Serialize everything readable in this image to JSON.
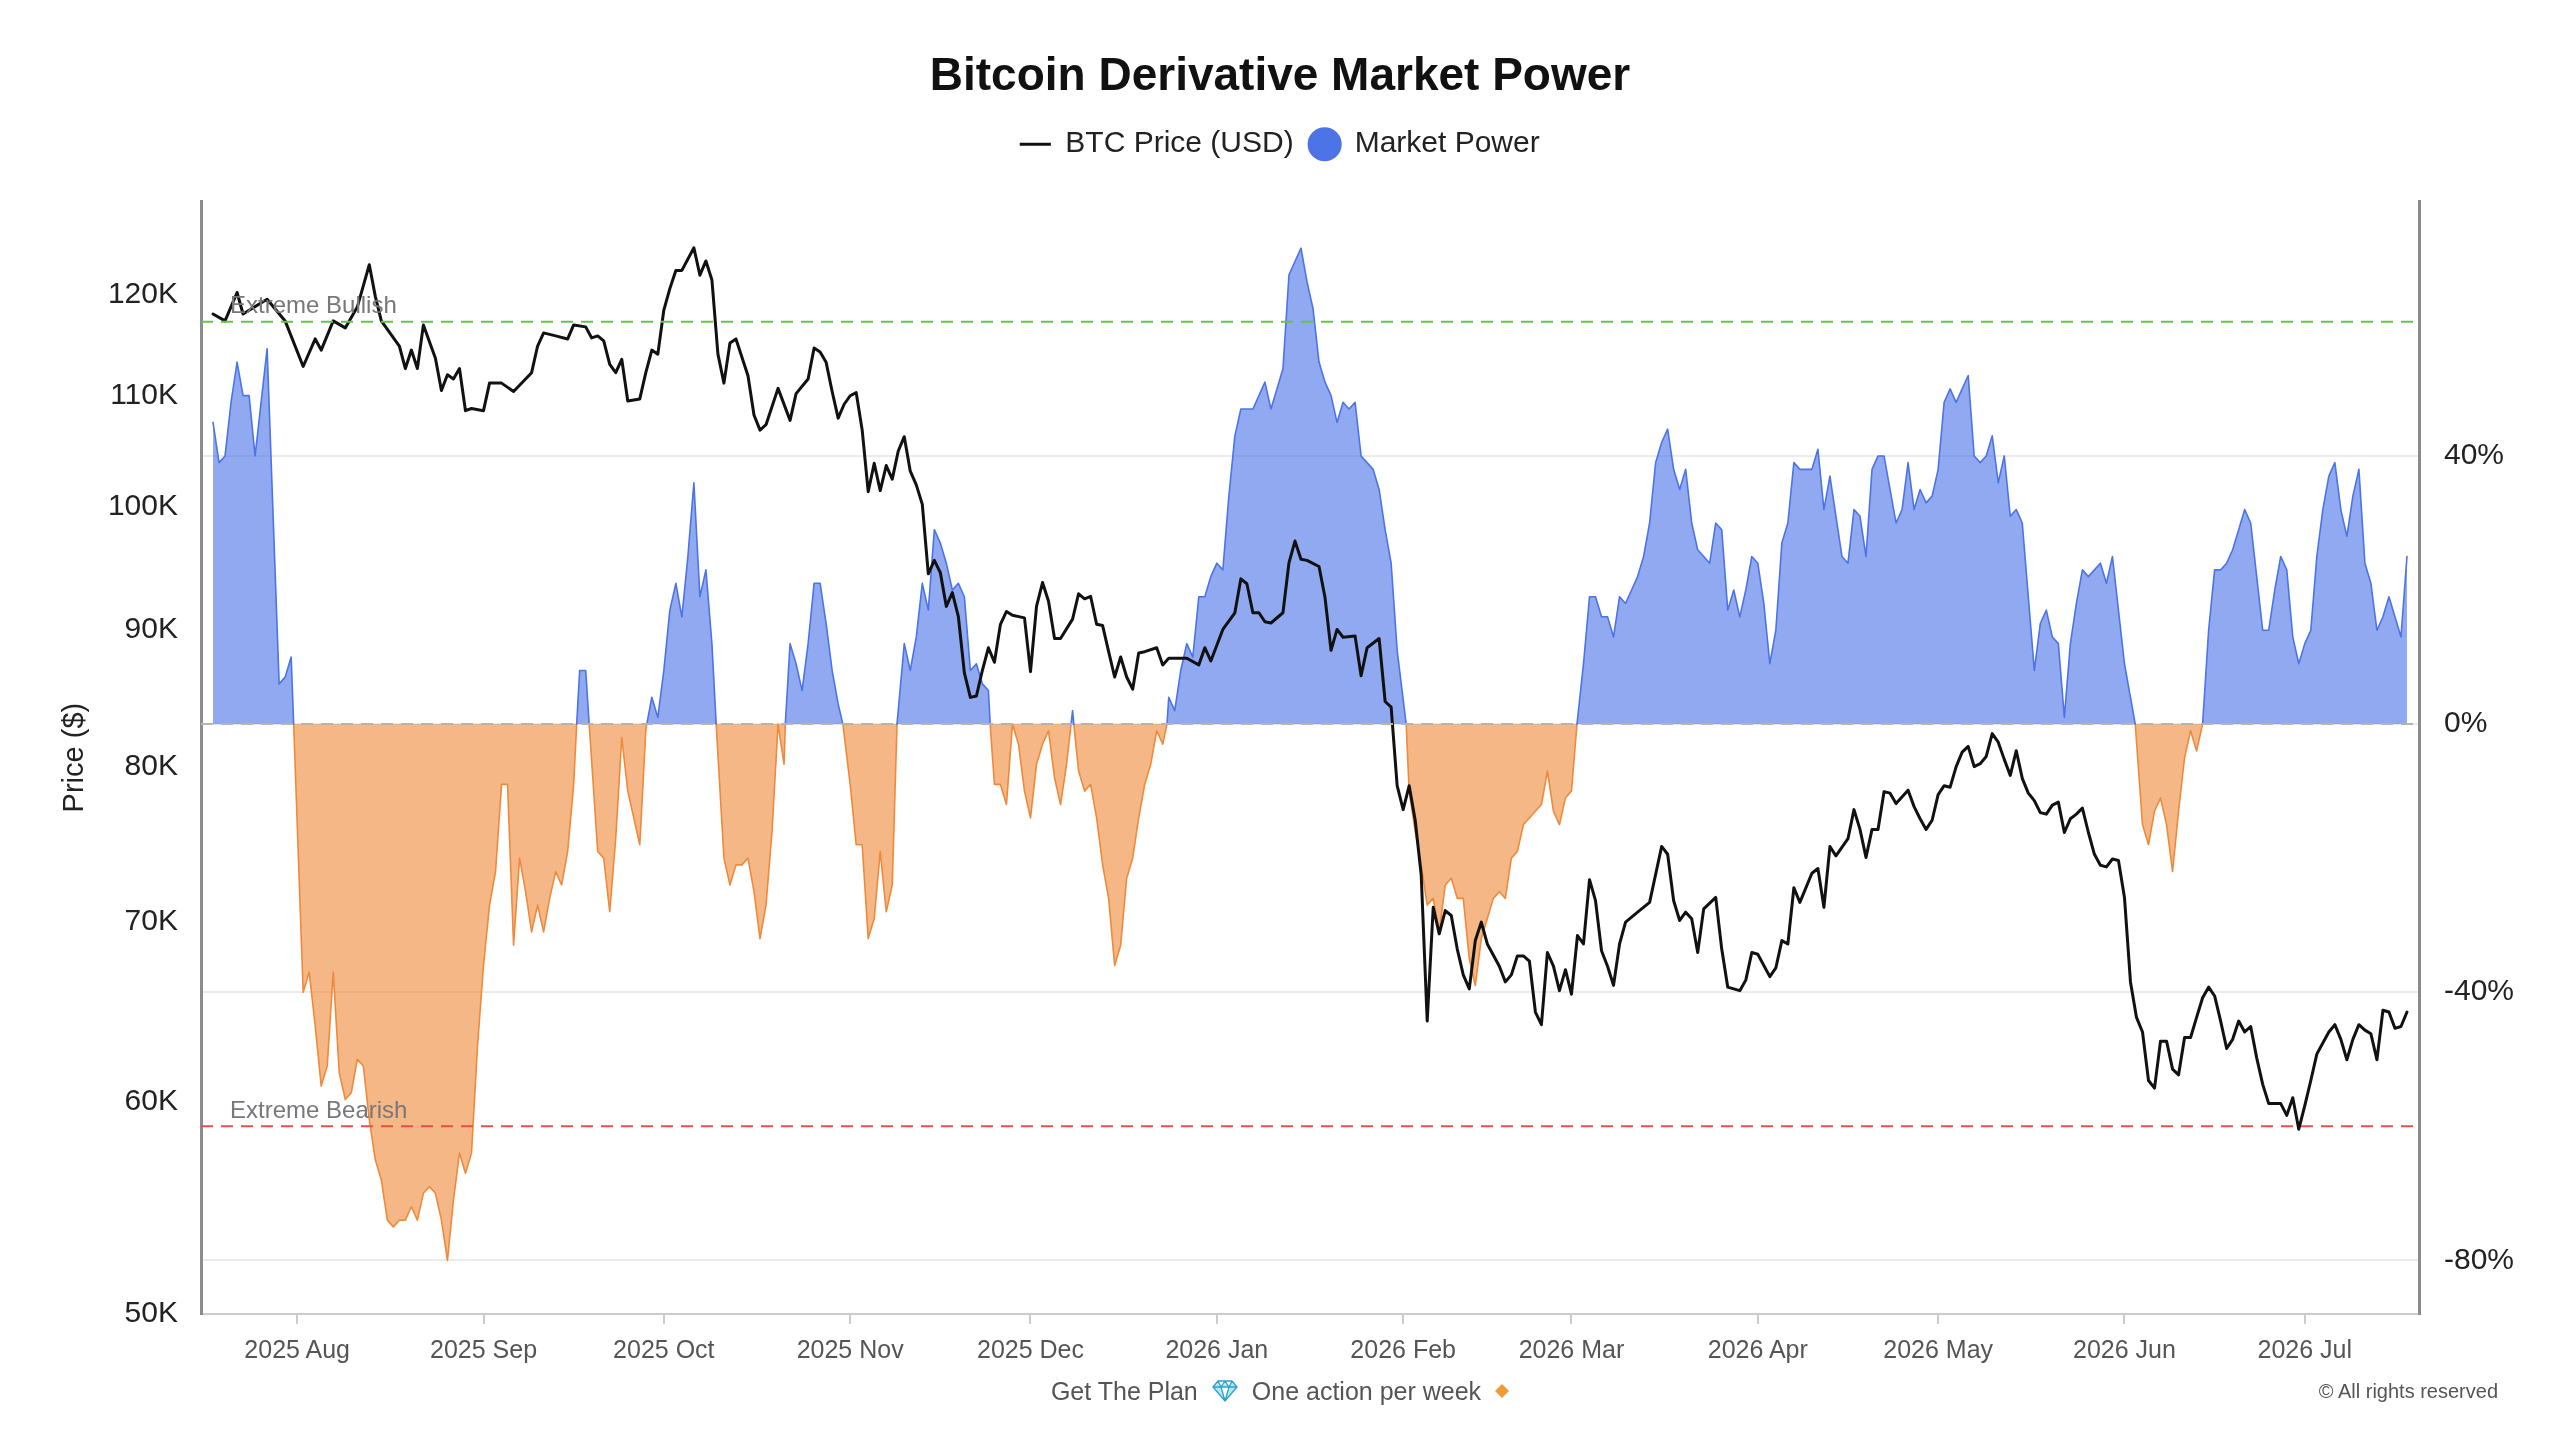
{
  "chart_data": {
    "type": "line",
    "title": "Bitcoin Derivative Market Power",
    "ylabel": "Price ($)",
    "legend": "top",
    "log": "y",
    "grid": "y2",
    "xlim": [
      "2025-07-16",
      "2026-07-20"
    ],
    "xticks": [
      {
        "value": "2025-08",
        "label": "2025 Aug"
      },
      {
        "value": "2025-09",
        "label": "2025 Sep"
      },
      {
        "value": "2025-10",
        "label": "2025 Oct"
      },
      {
        "value": "2025-11",
        "label": "2025 Nov"
      },
      {
        "value": "2025-12",
        "label": "2025 Dec"
      },
      {
        "value": "2026-01",
        "label": "2026 Jan"
      },
      {
        "value": "2026-02",
        "label": "2026 Feb"
      },
      {
        "value": "2026-03",
        "label": "2026 Mar"
      },
      {
        "value": "2026-04",
        "label": "2026 Apr"
      },
      {
        "value": "2026-05",
        "label": "2026 May"
      },
      {
        "value": "2026-06",
        "label": "2026 Jun"
      },
      {
        "value": "2026-07",
        "label": "2026 Jul"
      }
    ],
    "ylim": [
      50000,
      130000
    ],
    "yticks": [
      {
        "value": 50000,
        "label": "50K"
      },
      {
        "value": 60000,
        "label": "60K"
      },
      {
        "value": 70000,
        "label": "70K"
      },
      {
        "value": 80000,
        "label": "80K"
      },
      {
        "value": 90000,
        "label": "90K"
      },
      {
        "value": 100000,
        "label": "100K"
      },
      {
        "value": 110000,
        "label": "110K"
      },
      {
        "value": 120000,
        "label": "120K"
      }
    ],
    "y2lim": [
      -88,
      78
    ],
    "y2ticks": [
      {
        "value": -80,
        "label": "-80%"
      },
      {
        "value": -40,
        "label": "-40%"
      },
      {
        "value": 0,
        "label": "0%"
      },
      {
        "value": 40,
        "label": "40%"
      }
    ],
    "ref_lines": [
      {
        "axis": "y2",
        "value": 60,
        "label": "Extreme Bullish",
        "color": "#6cbf4f",
        "line_style": "dashed"
      },
      {
        "axis": "y2",
        "value": -60,
        "label": "Extreme Bearish",
        "color": "#e0524f",
        "line_style": "dashed"
      },
      {
        "axis": "y2",
        "value": 0,
        "color": "#b4b4b4",
        "line_style": "dashed"
      }
    ],
    "annotations": [
      "Get The Plan",
      "One action per week",
      "© All rights reserved"
    ],
    "series": [
      {
        "name": "BTC Price (USD)",
        "color": "#111111",
        "x": [
          "2025-07-18",
          "2025-07-20",
          "2025-07-22",
          "2025-07-23",
          "2025-07-27",
          "2025-07-30",
          "2025-08-02",
          "2025-08-04",
          "2025-08-05",
          "2025-08-07",
          "2025-08-09",
          "2025-08-11",
          "2025-08-13",
          "2025-08-14",
          "2025-08-15",
          "2025-08-18",
          "2025-08-19",
          "2025-08-20",
          "2025-08-21",
          "2025-08-22",
          "2025-08-24",
          "2025-08-25",
          "2025-08-26",
          "2025-08-27",
          "2025-08-28",
          "2025-08-29",
          "2025-08-30",
          "2025-09-01",
          "2025-09-02",
          "2025-09-04",
          "2025-09-06",
          "2025-09-09",
          "2025-09-10",
          "2025-09-11",
          "2025-09-13",
          "2025-09-15",
          "2025-09-16",
          "2025-09-18",
          "2025-09-19",
          "2025-09-20",
          "2025-09-21",
          "2025-09-22",
          "2025-09-23",
          "2025-09-24",
          "2025-09-25",
          "2025-09-27",
          "2025-09-28",
          "2025-09-29",
          "2025-09-30",
          "2025-10-01",
          "2025-10-02",
          "2025-10-03",
          "2025-10-04",
          "2025-10-06",
          "2025-10-07",
          "2025-10-08",
          "2025-10-09",
          "2025-10-10",
          "2025-10-11",
          "2025-10-12",
          "2025-10-13",
          "2025-10-15",
          "2025-10-16",
          "2025-10-17",
          "2025-10-18",
          "2025-10-20",
          "2025-10-22",
          "2025-10-23",
          "2025-10-25",
          "2025-10-26",
          "2025-10-27",
          "2025-10-28",
          "2025-10-29",
          "2025-10-30",
          "2025-10-31",
          "2025-11-01",
          "2025-11-02",
          "2025-11-03",
          "2025-11-04",
          "2025-11-05",
          "2025-11-06",
          "2025-11-07",
          "2025-11-08",
          "2025-11-09",
          "2025-11-10",
          "2025-11-11",
          "2025-11-12",
          "2025-11-13",
          "2025-11-14",
          "2025-11-15",
          "2025-11-16",
          "2025-11-17",
          "2025-11-18",
          "2025-11-19",
          "2025-11-20",
          "2025-11-21",
          "2025-11-22",
          "2025-11-23",
          "2025-11-24",
          "2025-11-25",
          "2025-11-26",
          "2025-11-27",
          "2025-11-28",
          "2025-11-30",
          "2025-12-01",
          "2025-12-02",
          "2025-12-03",
          "2025-12-04",
          "2025-12-05",
          "2025-12-06",
          "2025-12-08",
          "2025-12-09",
          "2025-12-10",
          "2025-12-11",
          "2025-12-12",
          "2025-12-13",
          "2025-12-14",
          "2025-12-15",
          "2025-12-16",
          "2025-12-17",
          "2025-12-18",
          "2025-12-19",
          "2025-12-20",
          "2025-12-22",
          "2025-12-23",
          "2025-12-24",
          "2025-12-27",
          "2025-12-29",
          "2025-12-30",
          "2025-12-31",
          "2026-01-02",
          "2026-01-04",
          "2026-01-05",
          "2026-01-06",
          "2026-01-07",
          "2026-01-08",
          "2026-01-09",
          "2026-01-10",
          "2026-01-12",
          "2026-01-13",
          "2026-01-14",
          "2026-01-15",
          "2026-01-16",
          "2026-01-18",
          "2026-01-19",
          "2026-01-20",
          "2026-01-21",
          "2026-01-22",
          "2026-01-24",
          "2026-01-25",
          "2026-01-26",
          "2026-01-28",
          "2026-01-29",
          "2026-01-30",
          "2026-01-31",
          "2026-02-01",
          "2026-02-02",
          "2026-02-03",
          "2026-02-04",
          "2026-02-05",
          "2026-02-06",
          "2026-02-07",
          "2026-02-08",
          "2026-02-09",
          "2026-02-10",
          "2026-02-11",
          "2026-02-12",
          "2026-02-13",
          "2026-02-14",
          "2026-02-15",
          "2026-02-17",
          "2026-02-18",
          "2026-02-19",
          "2026-02-20",
          "2026-02-21",
          "2026-02-22",
          "2026-02-23",
          "2026-02-24",
          "2026-02-25",
          "2026-02-26",
          "2026-02-27",
          "2026-02-28",
          "2026-03-01",
          "2026-03-02",
          "2026-03-03",
          "2026-03-04",
          "2026-03-05",
          "2026-03-06",
          "2026-03-07",
          "2026-03-08",
          "2026-03-09",
          "2026-03-10",
          "2026-03-12",
          "2026-03-14",
          "2026-03-16",
          "2026-03-17",
          "2026-03-18",
          "2026-03-19",
          "2026-03-20",
          "2026-03-21",
          "2026-03-22",
          "2026-03-23",
          "2026-03-25",
          "2026-03-26",
          "2026-03-27",
          "2026-03-29",
          "2026-03-30",
          "2026-03-31",
          "2026-04-01",
          "2026-04-03",
          "2026-04-04",
          "2026-04-05",
          "2026-04-06",
          "2026-04-07",
          "2026-04-08",
          "2026-04-10",
          "2026-04-11",
          "2026-04-12",
          "2026-04-13",
          "2026-04-14",
          "2026-04-16",
          "2026-04-17",
          "2026-04-18",
          "2026-04-19",
          "2026-04-20",
          "2026-04-21",
          "2026-04-22",
          "2026-04-23",
          "2026-04-24",
          "2026-04-26",
          "2026-04-27",
          "2026-04-28",
          "2026-04-29",
          "2026-04-30",
          "2026-05-01",
          "2026-05-02",
          "2026-05-03",
          "2026-05-04",
          "2026-05-05",
          "2026-05-06",
          "2026-05-07",
          "2026-05-08",
          "2026-05-09",
          "2026-05-10",
          "2026-05-11",
          "2026-05-12",
          "2026-05-13",
          "2026-05-14",
          "2026-05-15",
          "2026-05-16",
          "2026-05-17",
          "2026-05-18",
          "2026-05-19",
          "2026-05-20",
          "2026-05-21",
          "2026-05-22",
          "2026-05-23",
          "2026-05-24",
          "2026-05-25",
          "2026-05-26",
          "2026-05-27",
          "2026-05-28",
          "2026-05-29",
          "2026-05-30",
          "2026-05-31",
          "2026-06-01",
          "2026-06-02",
          "2026-06-03",
          "2026-06-04",
          "2026-06-05",
          "2026-06-06",
          "2026-06-07",
          "2026-06-08",
          "2026-06-09",
          "2026-06-10",
          "2026-06-11",
          "2026-06-12",
          "2026-06-13",
          "2026-06-14",
          "2026-06-15",
          "2026-06-16",
          "2026-06-17",
          "2026-06-18",
          "2026-06-19",
          "2026-06-20",
          "2026-06-21",
          "2026-06-22",
          "2026-06-23",
          "2026-06-24",
          "2026-06-25",
          "2026-06-27",
          "2026-06-28",
          "2026-06-29",
          "2026-06-30",
          "2026-07-01",
          "2026-07-02",
          "2026-07-03",
          "2026-07-04",
          "2026-07-05",
          "2026-07-06",
          "2026-07-07",
          "2026-07-08",
          "2026-07-09",
          "2026-07-10",
          "2026-07-11",
          "2026-07-12",
          "2026-07-13",
          "2026-07-14",
          "2026-07-15",
          "2026-07-16",
          "2026-07-17",
          "2026-07-18"
        ],
        "values": [
          118000,
          117300,
          120200,
          118000,
          119500,
          117300,
          112800,
          115500,
          114400,
          117300,
          116600,
          118700,
          123100,
          119800,
          117300,
          114800,
          112600,
          114400,
          112600,
          116900,
          113600,
          110500,
          112000,
          111600,
          112600,
          108600,
          108800,
          108600,
          111200,
          111200,
          110400,
          112200,
          114800,
          116100,
          115800,
          115500,
          116900,
          116700,
          115600,
          115800,
          115300,
          113000,
          112200,
          113500,
          109500,
          109700,
          112200,
          114400,
          114000,
          118400,
          120600,
          122500,
          122500,
          124900,
          122000,
          123500,
          121500,
          114000,
          111200,
          115100,
          115500,
          111900,
          108200,
          106800,
          107300,
          110700,
          107700,
          110200,
          111600,
          114600,
          114200,
          113200,
          110400,
          107900,
          109200,
          110000,
          110300,
          106800,
          101300,
          103800,
          101400,
          103600,
          102400,
          104900,
          106200,
          103100,
          101900,
          100200,
          94400,
          95500,
          94500,
          91800,
          92900,
          91000,
          86700,
          84900,
          85000,
          86900,
          88600,
          87500,
          90400,
          91400,
          91100,
          90900,
          86800,
          91800,
          93700,
          92200,
          89300,
          89300,
          90800,
          92800,
          92400,
          92600,
          90400,
          90300,
          88300,
          86400,
          87900,
          86400,
          85500,
          88200,
          88300,
          88600,
          87300,
          87800,
          87800,
          87300,
          88600,
          87600,
          90000,
          91300,
          94000,
          93600,
          91300,
          91300,
          90600,
          90500,
          91300,
          95300,
          97100,
          95600,
          95500,
          95000,
          92500,
          88400,
          90000,
          89400,
          89500,
          86500,
          88600,
          89300,
          84600,
          84200,
          78700,
          77100,
          78700,
          76400,
          72900,
          64300,
          70900,
          69300,
          70700,
          70400,
          68400,
          66900,
          66100,
          68900,
          70000,
          68700,
          67400,
          66500,
          66900,
          68000,
          68000,
          67700,
          64800,
          64100,
          68200,
          67400,
          66000,
          67200,
          65800,
          69200,
          68700,
          72600,
          71300,
          68300,
          67400,
          66300,
          68700,
          70000,
          70600,
          71200,
          74700,
          74200,
          71300,
          70100,
          70600,
          70200,
          68200,
          70800,
          71500,
          68400,
          66200,
          66000,
          66600,
          68200,
          68100,
          66800,
          67300,
          68900,
          68700,
          72100,
          71200,
          73000,
          73300,
          70900,
          74700,
          74100,
          75200,
          77100,
          75800,
          74000,
          75800,
          75800,
          78300,
          78200,
          77500,
          78400,
          77300,
          76500,
          75800,
          76400,
          78100,
          78700,
          78600,
          80000,
          81000,
          81400,
          80000,
          80200,
          80700,
          82300,
          81700,
          80500,
          79400,
          81100,
          79200,
          78200,
          77700,
          76900,
          76800,
          77400,
          77600,
          75600,
          76500,
          76800,
          77200,
          75600,
          74200,
          73500,
          73400,
          73900,
          73800,
          71500,
          66500,
          64500,
          63700,
          61100,
          60700,
          63200,
          63200,
          61700,
          61400,
          63400,
          63400,
          64500,
          65600,
          66200,
          65700,
          64300,
          62800,
          63300,
          64300,
          63700,
          64000,
          62300,
          60900,
          59900,
          59900,
          59300,
          60200,
          58600,
          59800,
          61100,
          62500,
          63100,
          63700,
          64100,
          63300,
          62200,
          63300,
          64100,
          63800,
          63600,
          62200,
          64900,
          64800,
          63900,
          64000,
          64800
        ]
      },
      {
        "name": "Market Power",
        "type": "area",
        "axis": "y2",
        "color": "#4d74e6",
        "x": [
          "2025-07-18",
          "2025-07-19",
          "2025-07-20",
          "2025-07-21",
          "2025-07-22",
          "2025-07-23",
          "2025-07-24",
          "2025-07-25",
          "2025-07-26",
          "2025-07-27",
          "2025-07-29",
          "2025-07-30",
          "2025-07-31",
          "2025-07-31T10:00",
          "2025-08-15",
          "2025-09-16T12:00",
          "2025-09-17",
          "2025-09-18",
          "2025-09-18T14:00",
          "2025-09-23",
          "2025-09-28T04:00",
          "2025-09-29",
          "2025-09-30",
          "2025-10-01",
          "2025-10-02",
          "2025-10-03",
          "2025-10-04",
          "2025-10-05",
          "2025-10-06",
          "2025-10-07",
          "2025-10-08",
          "2025-10-09",
          "2025-10-09T17:00",
          "2025-10-15",
          "2025-10-21T05:00",
          "2025-10-22",
          "2025-10-23",
          "2025-10-24",
          "2025-10-25",
          "2025-10-26",
          "2025-10-27",
          "2025-10-28",
          "2025-10-29",
          "2025-10-30",
          "2025-10-30T19:00",
          "2025-11-04",
          "2025-11-08T19:00",
          "2025-11-10",
          "2025-11-11",
          "2025-11-12",
          "2025-11-13",
          "2025-11-14",
          "2025-11-15",
          "2025-11-16",
          "2025-11-17",
          "2025-11-18",
          "2025-11-19",
          "2025-11-20",
          "2025-11-21",
          "2025-11-22",
          "2025-11-23",
          "2025-11-24",
          "2025-11-24T07:00",
          "2025-12-01",
          "2025-12-07T18:00",
          "2025-12-08",
          "2025-12-08T05:00",
          "2025-12-15",
          "2025-12-23T17:00",
          "2025-12-24",
          "2025-12-25",
          "2025-12-26",
          "2025-12-27",
          "2025-12-28",
          "2025-12-29",
          "2025-12-30",
          "2025-12-31",
          "2026-01-01",
          "2026-01-02",
          "2026-01-03",
          "2026-01-04",
          "2026-01-05",
          "2026-01-06",
          "2026-01-07",
          "2026-01-08",
          "2026-01-09",
          "2026-01-10",
          "2026-01-11",
          "2026-01-12",
          "2026-01-13",
          "2026-01-14",
          "2026-01-15",
          "2026-01-16",
          "2026-01-17",
          "2026-01-18",
          "2026-01-19",
          "2026-01-20",
          "2026-01-21",
          "2026-01-22",
          "2026-01-23",
          "2026-01-24",
          "2026-01-25",
          "2026-01-26",
          "2026-01-27",
          "2026-01-28",
          "2026-01-29",
          "2026-01-30",
          "2026-01-31",
          "2026-02-01T12:00",
          "2026-02-15",
          "2026-03-01T22:00",
          "2026-03-03",
          "2026-03-04",
          "2026-03-05",
          "2026-03-06",
          "2026-03-07",
          "2026-03-08",
          "2026-03-09",
          "2026-03-10",
          "2026-03-11",
          "2026-03-12",
          "2026-03-13",
          "2026-03-14",
          "2026-03-15",
          "2026-03-16",
          "2026-03-17",
          "2026-03-18",
          "2026-03-19",
          "2026-03-20",
          "2026-03-21",
          "2026-03-22",
          "2026-03-23",
          "2026-03-24",
          "2026-03-25",
          "2026-03-26",
          "2026-03-27",
          "2026-03-28",
          "2026-03-29",
          "2026-03-30",
          "2026-03-31",
          "2026-04-01",
          "2026-04-02",
          "2026-04-03",
          "2026-04-04",
          "2026-04-05",
          "2026-04-06",
          "2026-04-07",
          "2026-04-08",
          "2026-04-09",
          "2026-04-10",
          "2026-04-11",
          "2026-04-12",
          "2026-04-13",
          "2026-04-14",
          "2026-04-15",
          "2026-04-16",
          "2026-04-17",
          "2026-04-18",
          "2026-04-19",
          "2026-04-20",
          "2026-04-21",
          "2026-04-22",
          "2026-04-23",
          "2026-04-24",
          "2026-04-25",
          "2026-04-26",
          "2026-04-27",
          "2026-04-28",
          "2026-04-29",
          "2026-04-30",
          "2026-05-01",
          "2026-05-02",
          "2026-05-03",
          "2026-05-04",
          "2026-05-05",
          "2026-05-06",
          "2026-05-07",
          "2026-05-08",
          "2026-05-09",
          "2026-05-10",
          "2026-05-11",
          "2026-05-12",
          "2026-05-13",
          "2026-05-14",
          "2026-05-15",
          "2026-05-16",
          "2026-05-17",
          "2026-05-18",
          "2026-05-19",
          "2026-05-20",
          "2026-05-21",
          "2026-05-22",
          "2026-05-23",
          "2026-05-24",
          "2026-05-25",
          "2026-05-26",
          "2026-05-27",
          "2026-05-28",
          "2026-05-29",
          "2026-05-30",
          "2026-05-31",
          "2026-06-01",
          "2026-06-02",
          "2026-06-02T19:00",
          "2026-06-08",
          "2026-06-14",
          "2026-06-15",
          "2026-06-16",
          "2026-06-17",
          "2026-06-18",
          "2026-06-19",
          "2026-06-20",
          "2026-06-21",
          "2026-06-22",
          "2026-06-23",
          "2026-06-24",
          "2026-06-25",
          "2026-06-26",
          "2026-06-27",
          "2026-06-28",
          "2026-06-29",
          "2026-06-30",
          "2026-07-01",
          "2026-07-02",
          "2026-07-03",
          "2026-07-04",
          "2026-07-05",
          "2026-07-06",
          "2026-07-07",
          "2026-07-08",
          "2026-07-09",
          "2026-07-10",
          "2026-07-11",
          "2026-07-12",
          "2026-07-13",
          "2026-07-14",
          "2026-07-15",
          "2026-07-16",
          "2026-07-17",
          "2026-07-18"
        ],
        "values": [
          45,
          39,
          40,
          48,
          54,
          49,
          49,
          40,
          48,
          56,
          6,
          7,
          10,
          0,
          null,
          0,
          8,
          8,
          0,
          null,
          0,
          4,
          1,
          8,
          17,
          21,
          16,
          25,
          36,
          19,
          23,
          12,
          0,
          null,
          0,
          12,
          9,
          5,
          12,
          21,
          21,
          15,
          8,
          3,
          0,
          null,
          0,
          12,
          8,
          13,
          21,
          17,
          29,
          27,
          24,
          20,
          21,
          19,
          8,
          9,
          6,
          5,
          0,
          null,
          0,
          2,
          0,
          null,
          0,
          4,
          2,
          8,
          12,
          10,
          19,
          19,
          22,
          24,
          23,
          34,
          43,
          47,
          47,
          47,
          49,
          51,
          47,
          50,
          53,
          67,
          69,
          71,
          66,
          62,
          54,
          51,
          49,
          45,
          48,
          47,
          48,
          40,
          39,
          38,
          35,
          29,
          24,
          11,
          0,
          null,
          0,
          9,
          19,
          19,
          16,
          16,
          13,
          19,
          18,
          20,
          22,
          25,
          30,
          39,
          42,
          44,
          38,
          35,
          38,
          30,
          26,
          25,
          24,
          30,
          29,
          17,
          20,
          16,
          20,
          25,
          24,
          18,
          9,
          14,
          27,
          30,
          39,
          38,
          38,
          38,
          41,
          32,
          37,
          31,
          25,
          24,
          32,
          31,
          25,
          38,
          40,
          40,
          35,
          30,
          32,
          39,
          32,
          35,
          33,
          34,
          38,
          48,
          50,
          48,
          50,
          52,
          40,
          39,
          40,
          43,
          36,
          40,
          31,
          32,
          30,
          19,
          8,
          15,
          17,
          13,
          12,
          1,
          12,
          18,
          23,
          22,
          23,
          24,
          21,
          25,
          17,
          9,
          4,
          0,
          null,
          0,
          14,
          23,
          23,
          24,
          26,
          29,
          32,
          30,
          22,
          14,
          14,
          20,
          25,
          23,
          13,
          9,
          12,
          14,
          25,
          32,
          37,
          39,
          32,
          28,
          34,
          38,
          24,
          21,
          14,
          16,
          19,
          16,
          13,
          25
        ]
      },
      {
        "type": "area",
        "axis": "y2",
        "color": "#ef8a3c",
        "x": [
          "2025-07-31T10:00",
          "2025-08-02",
          "2025-08-03",
          "2025-08-04",
          "2025-08-05",
          "2025-08-06",
          "2025-08-07",
          "2025-08-08",
          "2025-08-09",
          "2025-08-10",
          "2025-08-11",
          "2025-08-12",
          "2025-08-13",
          "2025-08-14",
          "2025-08-15",
          "2025-08-16",
          "2025-08-17",
          "2025-08-18",
          "2025-08-19",
          "2025-08-20",
          "2025-08-21",
          "2025-08-22",
          "2025-08-23",
          "2025-08-24",
          "2025-08-25",
          "2025-08-26",
          "2025-08-27",
          "2025-08-28",
          "2025-08-29",
          "2025-08-30",
          "2025-08-31",
          "2025-09-01",
          "2025-09-02",
          "2025-09-03",
          "2025-09-04",
          "2025-09-05",
          "2025-09-06",
          "2025-09-07",
          "2025-09-08",
          "2025-09-09",
          "2025-09-10",
          "2025-09-11",
          "2025-09-12",
          "2025-09-13",
          "2025-09-14",
          "2025-09-15",
          "2025-09-16",
          "2025-09-16T12:00",
          "2025-09-17",
          "2025-09-18T14:00",
          "2025-09-20",
          "2025-09-21",
          "2025-09-22",
          "2025-09-23",
          "2025-09-24",
          "2025-09-25",
          "2025-09-26",
          "2025-09-27",
          "2025-09-28",
          "2025-09-28T04:00",
          "2025-10-01",
          "2025-10-09T17:00",
          "2025-10-11",
          "2025-10-12",
          "2025-10-13",
          "2025-10-14",
          "2025-10-15",
          "2025-10-16",
          "2025-10-17",
          "2025-10-18",
          "2025-10-19",
          "2025-10-20",
          "2025-10-21",
          "2025-10-21T05:00",
          "2025-10-25",
          "2025-10-30T19:00",
          "2025-11-01",
          "2025-11-02",
          "2025-11-03",
          "2025-11-04",
          "2025-11-05",
          "2025-11-06",
          "2025-11-07",
          "2025-11-08",
          "2025-11-08T19:00",
          "2025-11-15",
          "2025-11-24T07:00",
          "2025-11-25",
          "2025-11-26",
          "2025-11-27",
          "2025-11-28",
          "2025-11-29",
          "2025-11-30",
          "2025-12-01",
          "2025-12-02",
          "2025-12-03",
          "2025-12-04",
          "2025-12-05",
          "2025-12-06",
          "2025-12-07",
          "2025-12-07T18:00",
          "2025-12-08",
          "2025-12-08T05:00",
          "2025-12-09",
          "2025-12-10",
          "2025-12-11",
          "2025-12-12",
          "2025-12-13",
          "2025-12-14",
          "2025-12-15",
          "2025-12-16",
          "2025-12-17",
          "2025-12-18",
          "2025-12-19",
          "2025-12-20",
          "2025-12-21",
          "2025-12-22",
          "2025-12-23",
          "2025-12-23T17:00",
          "2026-01-10",
          "2026-02-01T12:00",
          "2026-02-02",
          "2026-02-03",
          "2026-02-04",
          "2026-02-05",
          "2026-02-06",
          "2026-02-07",
          "2026-02-08",
          "2026-02-09",
          "2026-02-10",
          "2026-02-11",
          "2026-02-12",
          "2026-02-13",
          "2026-02-14",
          "2026-02-15",
          "2026-02-16",
          "2026-02-17",
          "2026-02-18",
          "2026-02-19",
          "2026-02-20",
          "2026-02-21",
          "2026-02-22",
          "2026-02-23",
          "2026-02-24",
          "2026-02-25",
          "2026-02-26",
          "2026-02-27",
          "2026-02-28",
          "2026-03-01",
          "2026-03-01T22:00",
          "2026-04-01",
          "2026-06-02T19:00",
          "2026-06-04",
          "2026-06-05",
          "2026-06-06",
          "2026-06-07",
          "2026-06-08",
          "2026-06-09",
          "2026-06-10",
          "2026-06-11",
          "2026-06-12",
          "2026-06-13",
          "2026-06-14"
        ],
        "values": [
          0,
          -40,
          -37,
          -45,
          -54,
          -51,
          -37,
          -52,
          -56,
          -55,
          -50,
          -51,
          -59,
          -65,
          -68,
          -74,
          -75,
          -74,
          -74,
          -72,
          -74,
          -70,
          -69,
          -70,
          -74,
          -80,
          -71,
          -64,
          -67,
          -64,
          -48,
          -36,
          -27,
          -22,
          -9,
          -9,
          -33,
          -20,
          -25,
          -31,
          -27,
          -31,
          -26,
          -22,
          -24,
          -19,
          -9,
          0,
          null,
          0,
          -19,
          -20,
          -28,
          -17,
          -2,
          -10,
          -14,
          -18,
          -1,
          0,
          null,
          0,
          -20,
          -24,
          -21,
          -21,
          -20,
          -25,
          -32,
          -27,
          -16,
          0,
          -6,
          0,
          null,
          0,
          -9,
          -18,
          -18,
          -32,
          -29,
          -19,
          -28,
          -24,
          0,
          null,
          0,
          -9,
          -9,
          -12,
          0,
          -3,
          -10,
          -14,
          -6,
          -3,
          -1,
          -8,
          -12,
          -6,
          0,
          null,
          0,
          -7,
          -10,
          -9,
          -14,
          -21,
          -26,
          -36,
          -33,
          -23,
          -20,
          -14,
          -9,
          -6,
          -1,
          -3,
          0,
          null,
          0,
          -10,
          -16,
          -21,
          -27,
          -26,
          -31,
          -24,
          -23,
          -26,
          -26,
          -35,
          -39,
          -32,
          -29,
          -26,
          -25,
          -26,
          -20,
          -19,
          -15,
          -14,
          -13,
          -12,
          -7,
          -13,
          -15,
          -11,
          -10,
          0,
          null,
          0,
          -15,
          -18,
          -13,
          -11,
          -15,
          -22,
          -13,
          -5,
          -1,
          -4,
          0
        ]
      }
    ]
  }
}
